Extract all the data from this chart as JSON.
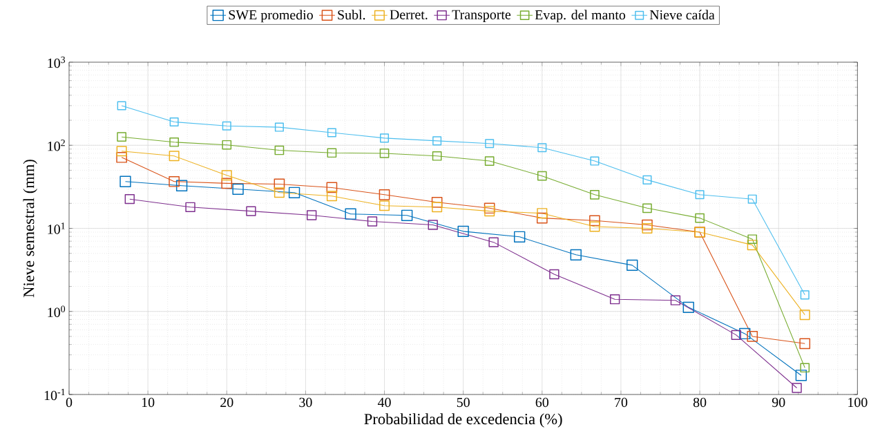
{
  "chart_data": {
    "type": "line",
    "xlabel": "Probabilidad de excedencia (%)",
    "ylabel": "Nieve semestral (mm)",
    "xlim": [
      0,
      100
    ],
    "xticks": [
      0,
      10,
      20,
      30,
      40,
      50,
      60,
      70,
      80,
      90,
      100
    ],
    "ylim": [
      0.1,
      1000
    ],
    "yticks": [
      {
        "value": 0.1,
        "label": "10$^{-1}$"
      },
      {
        "value": 1,
        "label": "10$^{0}$"
      },
      {
        "value": 10,
        "label": "10$^{1}$"
      },
      {
        "value": 100,
        "label": "10$^{2}$"
      },
      {
        "value": 1000,
        "label": "10$^{3}$"
      }
    ],
    "log": true,
    "grid": true,
    "legend": "top",
    "marker": "square",
    "line_style": "solid",
    "series": [
      {
        "name": "SWE promedio",
        "color": "#0072bd",
        "x": [
          7.14,
          14.29,
          21.43,
          28.57,
          35.71,
          42.86,
          50,
          57.14,
          64.29,
          71.43,
          78.57,
          85.71,
          92.86
        ],
        "values": [
          36.6,
          32.6,
          29.6,
          26.9,
          14.9,
          14.3,
          9.2,
          7.9,
          4.8,
          3.6,
          1.12,
          0.54,
          0.17
        ]
      },
      {
        "name": "Subl.",
        "color": "#d95319",
        "x": [
          6.67,
          13.33,
          20,
          26.67,
          33.33,
          40,
          46.67,
          53.33,
          60,
          66.67,
          73.33,
          80,
          86.67,
          93.33
        ],
        "values": [
          71.5,
          36.6,
          34.8,
          34.1,
          31,
          25.4,
          20.6,
          17.5,
          13.3,
          12.4,
          11,
          9,
          0.5,
          0.41
        ]
      },
      {
        "name": "Derret.",
        "color": "#edb120",
        "x": [
          6.67,
          13.33,
          20,
          26.67,
          33.33,
          40,
          46.67,
          53.33,
          60,
          66.67,
          73.33,
          80,
          86.67,
          93.33
        ],
        "values": [
          85,
          74.3,
          43.5,
          26.9,
          24.5,
          18.7,
          18,
          16.1,
          15.2,
          10.5,
          10,
          9,
          6.3,
          0.91
        ]
      },
      {
        "name": "Transporte",
        "color": "#7e2f8e",
        "x": [
          7.69,
          15.38,
          23.08,
          30.77,
          38.46,
          46.15,
          53.85,
          61.54,
          69.23,
          76.92,
          84.62,
          92.31
        ],
        "values": [
          22.5,
          18,
          16.1,
          14.4,
          12.1,
          11,
          6.8,
          2.8,
          1.4,
          1.36,
          0.52,
          0.12
        ]
      },
      {
        "name": "Evap. del manto",
        "color": "#77ac30",
        "x": [
          6.67,
          13.33,
          20,
          26.67,
          33.33,
          40,
          46.67,
          53.33,
          60,
          66.67,
          73.33,
          80,
          86.67,
          93.33
        ],
        "values": [
          126,
          109,
          101,
          87,
          81,
          80,
          74.3,
          64.6,
          42.7,
          25.4,
          17.5,
          13.3,
          7.4,
          0.21
        ]
      },
      {
        "name": "Nieve caída",
        "color": "#4dbeee",
        "x": [
          6.67,
          13.33,
          20,
          26.67,
          33.33,
          40,
          46.67,
          53.33,
          60,
          66.67,
          73.33,
          80,
          86.67,
          93.33
        ],
        "values": [
          299,
          191,
          171,
          165,
          142,
          122,
          113,
          105,
          93.5,
          64.6,
          38.3,
          25.4,
          22.5,
          1.58
        ]
      }
    ]
  }
}
